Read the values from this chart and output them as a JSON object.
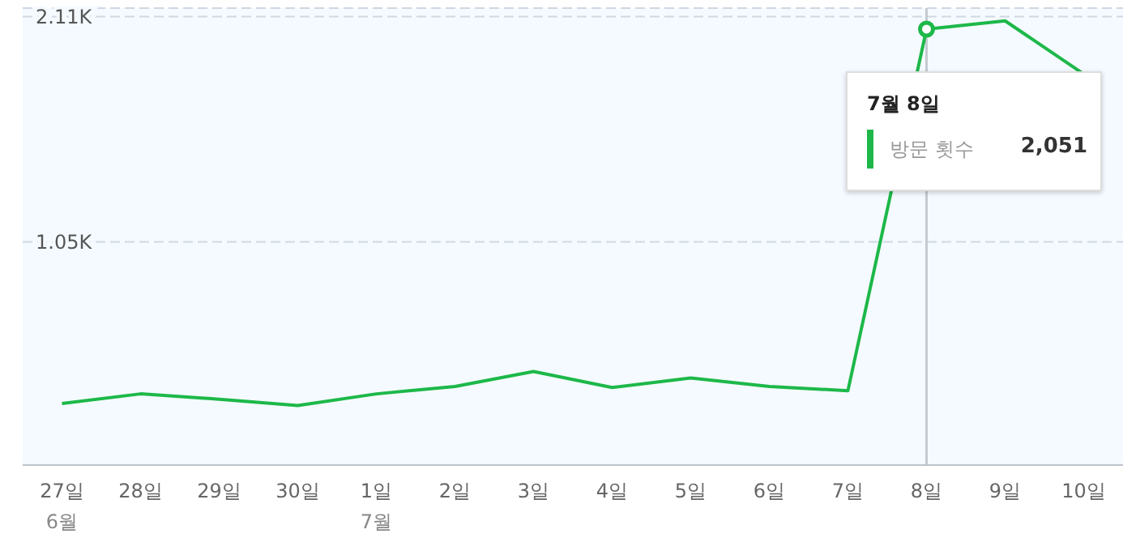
{
  "chart_data": {
    "type": "line",
    "categories": [
      "27일\n6월",
      "28일",
      "29일",
      "30일",
      "1일\n7월",
      "2일",
      "3일",
      "4일",
      "5일",
      "6일",
      "7일",
      "8일",
      "9일",
      "10일"
    ],
    "series": [
      {
        "name": "방문 횟수",
        "color": "#1db849",
        "values": [
          290,
          335,
          310,
          280,
          335,
          370,
          440,
          365,
          410,
          370,
          350,
          2051,
          2090,
          1840
        ]
      }
    ],
    "ylim": [
      0,
      2150
    ],
    "yticks": [
      {
        "value": 1050,
        "label": "1.05K"
      },
      {
        "value": 2110,
        "label": "2.11K"
      }
    ],
    "grid": "y",
    "legend": "top right",
    "marker": "none",
    "line_style": "solid",
    "ref_lines": [
      {
        "axis": "x",
        "value": "8일",
        "color": "#c5cad0"
      }
    ],
    "annotations": [
      "7월 8일",
      "2,051"
    ]
  }
}
